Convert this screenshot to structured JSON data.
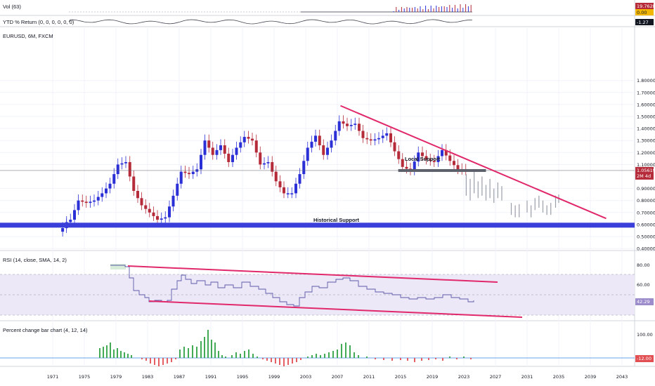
{
  "panes": {
    "vol": {
      "label": "Vol (63)",
      "badge_value": "19.762M",
      "badge_zero": "0.00"
    },
    "ytd": {
      "label": "YTD % Return (0, 0, 0, 0, 0, 0)",
      "badge_value": "-1.27"
    },
    "main": {
      "label": "EURUSD, 6M, FXCM",
      "price_badge": "1.05619",
      "price_sub": "2M 4d"
    },
    "rsi": {
      "label": "RSI (14, close, SMA, 14, 2)",
      "badge_value": "42.29"
    },
    "pct": {
      "label": "Percent change bar chart (4, 12, 14)",
      "badge_value": "-12.00"
    }
  },
  "annotations": {
    "local_support": "Local Support",
    "historical_support": "Historical Support"
  },
  "price_axis": [
    "1.80000",
    "1.70000",
    "1.60000",
    "1.50000",
    "1.40000",
    "1.30000",
    "1.20000",
    "1.10000",
    "0.90000",
    "0.80000",
    "0.70000",
    "0.60000",
    "0.50000",
    "0.40000"
  ],
  "rsi_axis": [
    "80.00",
    "60.00"
  ],
  "pct_axis": [
    "100.00"
  ],
  "time_axis": [
    "1971",
    "1975",
    "1979",
    "1983",
    "1987",
    "1991",
    "1995",
    "1999",
    "2003",
    "2007",
    "2011",
    "2015",
    "2019",
    "2023",
    "2027",
    "2031",
    "2035",
    "2039",
    "2043"
  ],
  "colors": {
    "up": "#2b2fd6",
    "down": "#b52b39",
    "support": "#3a3fd9",
    "trendline": "#e0286a",
    "rsi_line": "#5a59a8",
    "pct_up": "#2ea043",
    "pct_down": "#e14f52",
    "projection": "#9a9ea8"
  }
}
